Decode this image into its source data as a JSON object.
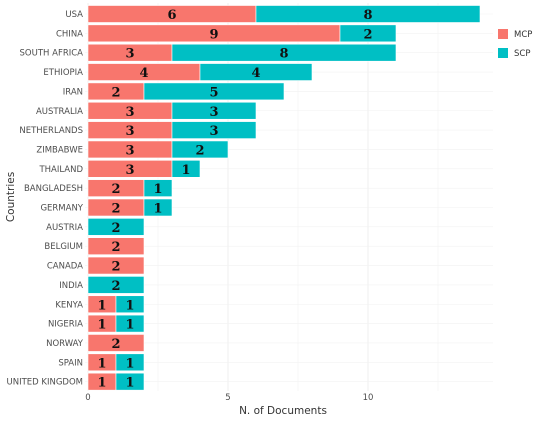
{
  "chart_data": {
    "type": "bar",
    "orientation": "horizontal",
    "stacked": true,
    "categories": [
      "USA",
      "CHINA",
      "SOUTH AFRICA",
      "ETHIOPIA",
      "IRAN",
      "AUSTRALIA",
      "NETHERLANDS",
      "ZIMBABWE",
      "THAILAND",
      "BANGLADESH",
      "GERMANY",
      "AUSTRIA",
      "BELGIUM",
      "CANADA",
      "INDIA",
      "KENYA",
      "NIGERIA",
      "NORWAY",
      "SPAIN",
      "UNITED KINGDOM"
    ],
    "series": [
      {
        "name": "MCP",
        "color": "#F8766D",
        "values": [
          6,
          9,
          3,
          4,
          2,
          3,
          3,
          3,
          3,
          2,
          2,
          0,
          2,
          2,
          0,
          1,
          1,
          2,
          1,
          1
        ]
      },
      {
        "name": "SCP",
        "color": "#00BFC4",
        "values": [
          8,
          2,
          8,
          4,
          5,
          3,
          3,
          2,
          1,
          1,
          1,
          2,
          0,
          0,
          2,
          1,
          1,
          0,
          1,
          1
        ]
      }
    ],
    "xlabel": "N. of Documents",
    "ylabel": "Countries",
    "xticks": [
      0,
      5,
      10
    ],
    "xlim": [
      0,
      14.5
    ],
    "grid": true,
    "legend_position": "right"
  }
}
